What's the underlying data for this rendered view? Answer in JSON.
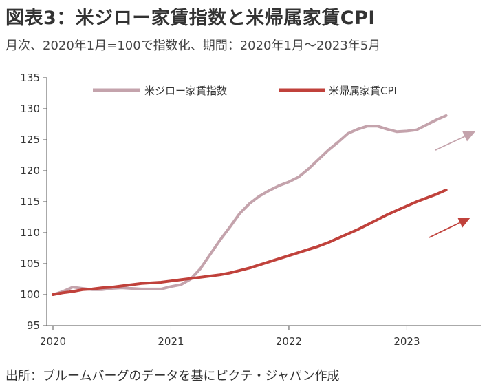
{
  "header": {
    "title": "図表3：米ジロー家賃指数と米帰属家賃CPI",
    "subtitle": "月次、2020年1月=100で指数化、期間：2020年1月～2023年5月"
  },
  "footer": {
    "source": "出所：ブルームバーグのデータを基にピクテ・ジャパン作成"
  },
  "chart_data": {
    "type": "line",
    "title": "図表3：米ジロー家賃指数と米帰属家賃CPI",
    "xlabel": "",
    "ylabel": "",
    "ylim": [
      95,
      135
    ],
    "yticks": [
      95,
      100,
      105,
      110,
      115,
      120,
      125,
      130,
      135
    ],
    "xticks": [
      "2020",
      "2021",
      "2022",
      "2023"
    ],
    "x_start": "2020-01",
    "x_end": "2023-05",
    "grid": false,
    "legend_position": "top",
    "series": [
      {
        "name": "米ジロー家賃指数",
        "color": "#c4a3ac",
        "values": [
          100,
          100.5,
          101.2,
          101.0,
          100.8,
          100.8,
          101.0,
          101.1,
          101.0,
          100.9,
          100.9,
          100.9,
          101.3,
          101.6,
          102.5,
          104.2,
          106.5,
          108.8,
          110.9,
          113.1,
          114.7,
          115.9,
          116.8,
          117.6,
          118.2,
          119.0,
          120.3,
          121.8,
          123.3,
          124.6,
          126.0,
          126.7,
          127.2,
          127.2,
          126.7,
          126.3,
          126.4,
          126.6,
          127.4,
          128.2,
          128.9
        ]
      },
      {
        "name": "米帰属家賃CPI",
        "color": "#c0413b",
        "values": [
          100,
          100.3,
          100.5,
          100.8,
          100.9,
          101.1,
          101.2,
          101.4,
          101.6,
          101.8,
          101.9,
          102.0,
          102.2,
          102.4,
          102.6,
          102.8,
          103.0,
          103.2,
          103.5,
          103.9,
          104.3,
          104.8,
          105.3,
          105.8,
          106.3,
          106.8,
          107.3,
          107.8,
          108.4,
          109.1,
          109.8,
          110.5,
          111.3,
          112.1,
          112.9,
          113.6,
          114.3,
          115.0,
          115.6,
          116.2,
          116.9
        ]
      }
    ]
  }
}
